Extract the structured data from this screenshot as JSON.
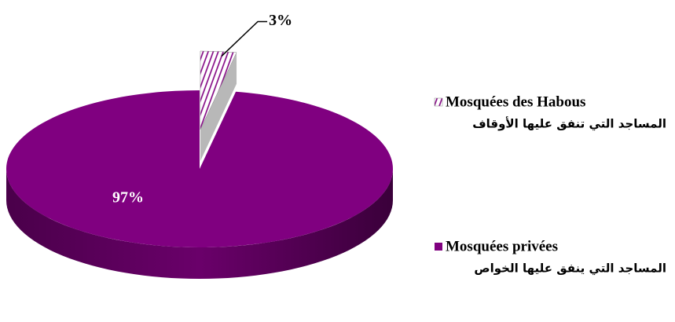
{
  "chart_data": {
    "type": "pie",
    "categories": [
      "Mosquées des Habous",
      "Mosquées privées"
    ],
    "categories_ar": [
      "المساجد التي تنفق عليها الأوقاف",
      "المساجد التي ينفق عليها الخواص"
    ],
    "values": [
      3,
      97
    ],
    "value_labels": [
      "3%",
      "97%"
    ],
    "colors": [
      "#800080",
      "#800080"
    ],
    "hatch": [
      true,
      false
    ],
    "exploded": [
      true,
      false
    ],
    "legend": "right"
  }
}
